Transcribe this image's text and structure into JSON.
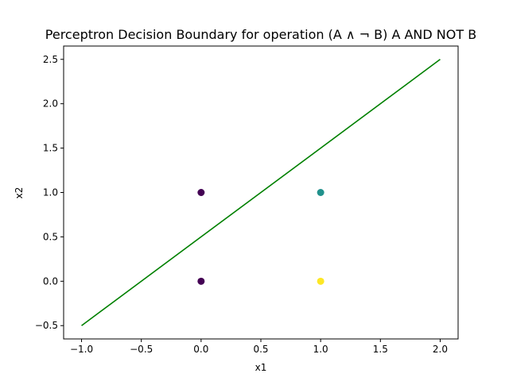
{
  "chart_data": {
    "type": "scatter",
    "title": "Perceptron Decision Boundary for operation (A ∧ ¬ B) A AND NOT B",
    "xlabel": "x1",
    "ylabel": "x2",
    "xlim": [
      -1.15,
      2.15
    ],
    "ylim": [
      -0.65,
      2.65
    ],
    "x_ticks": [
      -1.0,
      -0.5,
      0.0,
      0.5,
      1.0,
      1.5,
      2.0
    ],
    "x_tick_labels": [
      "−1.0",
      "−0.5",
      "0.0",
      "0.5",
      "1.0",
      "1.5",
      "2.0"
    ],
    "y_ticks": [
      -0.5,
      0.0,
      0.5,
      1.0,
      1.5,
      2.0,
      2.5
    ],
    "y_tick_labels": [
      "−0.5",
      "0.0",
      "0.5",
      "1.0",
      "1.5",
      "2.0",
      "2.5"
    ],
    "grid": false,
    "points": [
      {
        "x": 0,
        "y": 0,
        "color": "#440154"
      },
      {
        "x": 0,
        "y": 1,
        "color": "#440154"
      },
      {
        "x": 1,
        "y": 0,
        "color": "#fde725"
      },
      {
        "x": 1,
        "y": 1,
        "color": "#21918c"
      }
    ],
    "boundary_line": {
      "x": [
        -1.0,
        2.0
      ],
      "y": [
        -0.5,
        2.5
      ],
      "color": "#008000"
    }
  }
}
